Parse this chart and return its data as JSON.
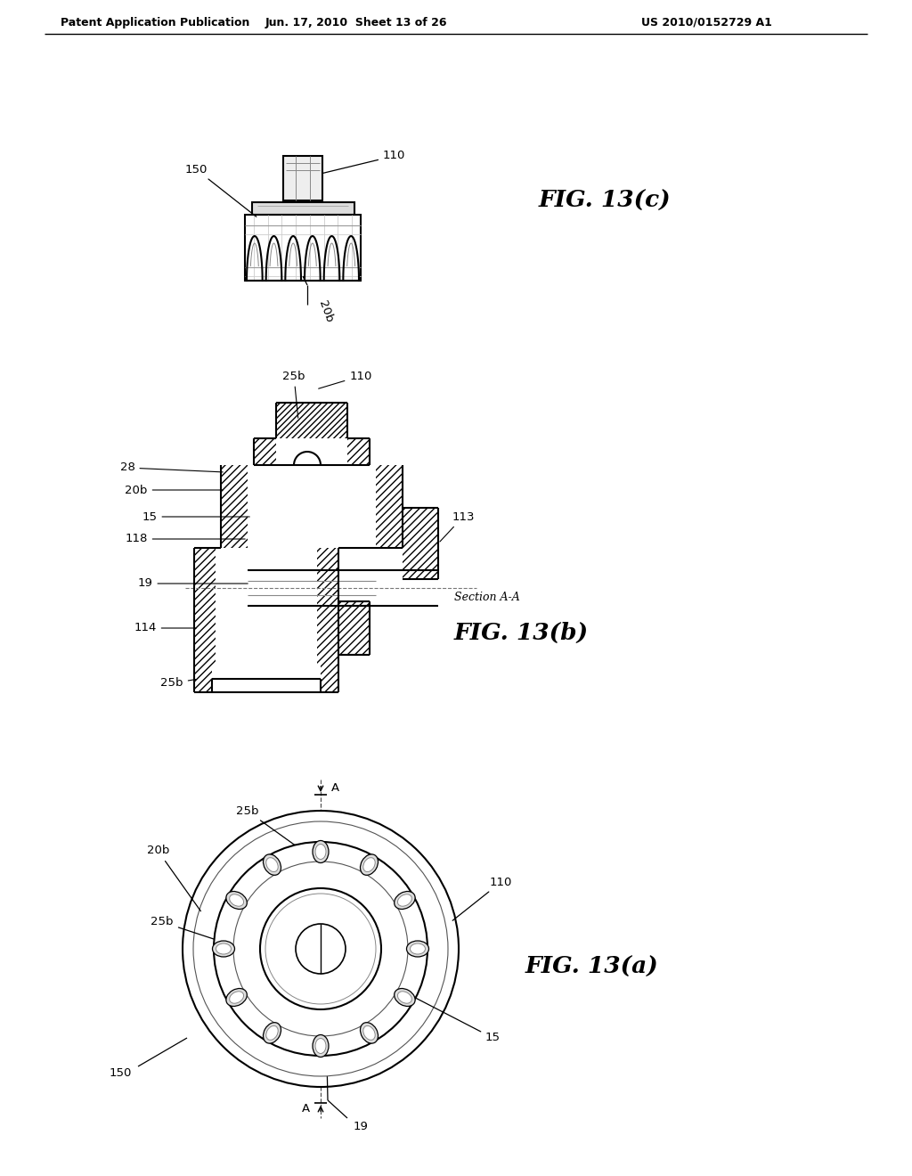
{
  "background_color": "#ffffff",
  "header_text": "Patent Application Publication",
  "header_date": "Jun. 17, 2010  Sheet 13 of 26",
  "header_patent": "US 2010/0152729 A1",
  "fig_c_title": "FIG. 13(c)",
  "fig_b_title": "FIG. 13(b)",
  "fig_a_title": "FIG. 13(a)",
  "fig_b_subtitle": "Section A-A",
  "line_color": "#000000",
  "line_width": 1.5
}
